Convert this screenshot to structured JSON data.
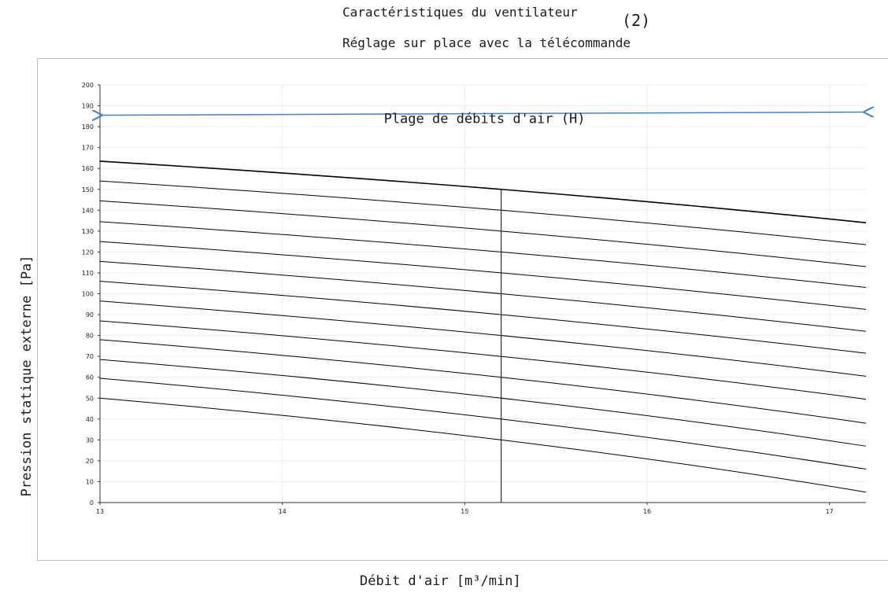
{
  "chart_data": {
    "type": "line",
    "title_line1": "Caractéristiques du ventilateur",
    "title_line2": "Réglage sur place avec la télécommande",
    "title_overlay": "(2)",
    "xlabel": "Débit d'air [m³/min]",
    "ylabel": "Pression statique externe [Pa]",
    "xlim": [
      13,
      17.2
    ],
    "ylim": [
      0,
      200
    ],
    "x_ticks": [
      13,
      14,
      15,
      16,
      17
    ],
    "y_ticks": [
      0,
      10,
      20,
      30,
      40,
      50,
      60,
      70,
      80,
      90,
      100,
      110,
      120,
      130,
      140,
      150,
      160,
      170,
      180,
      190,
      200
    ],
    "grid": true,
    "annotation": {
      "label": "Plage de débits d'air (H)",
      "x_start": 13,
      "x_end": 17.2,
      "y_start": 185.5,
      "y_end": 187,
      "color": "#4a7fc1"
    },
    "marker_line": {
      "x": 15.2,
      "y_top": 150
    },
    "curve_color": "#000000",
    "series": [
      {
        "x": [
          13,
          15.2,
          17.2
        ],
        "y": [
          163.5,
          150,
          134
        ]
      },
      {
        "x": [
          13,
          15.2,
          17.2
        ],
        "y": [
          154,
          140,
          123.5
        ]
      },
      {
        "x": [
          13,
          15.2,
          17.2
        ],
        "y": [
          144.5,
          130,
          113
        ]
      },
      {
        "x": [
          13,
          15.2,
          17.2
        ],
        "y": [
          134.5,
          120,
          103
        ]
      },
      {
        "x": [
          13,
          15.2,
          17.2
        ],
        "y": [
          125,
          110,
          92.5
        ]
      },
      {
        "x": [
          13,
          15.2,
          17.2
        ],
        "y": [
          115.5,
          100,
          82
        ]
      },
      {
        "x": [
          13,
          15.2,
          17.2
        ],
        "y": [
          106,
          90,
          71.5
        ]
      },
      {
        "x": [
          13,
          15.2,
          17.2
        ],
        "y": [
          96.5,
          80,
          60.5
        ]
      },
      {
        "x": [
          13,
          15.2,
          17.2
        ],
        "y": [
          87,
          70,
          49.5
        ]
      },
      {
        "x": [
          13,
          15.2,
          17.2
        ],
        "y": [
          78,
          60,
          38
        ]
      },
      {
        "x": [
          13,
          15.2,
          17.2
        ],
        "y": [
          68.5,
          50,
          27
        ]
      },
      {
        "x": [
          13,
          15.2,
          17.2
        ],
        "y": [
          59.5,
          40,
          16
        ]
      },
      {
        "x": [
          13,
          15.2,
          17.2
        ],
        "y": [
          50,
          30,
          5
        ]
      }
    ]
  }
}
